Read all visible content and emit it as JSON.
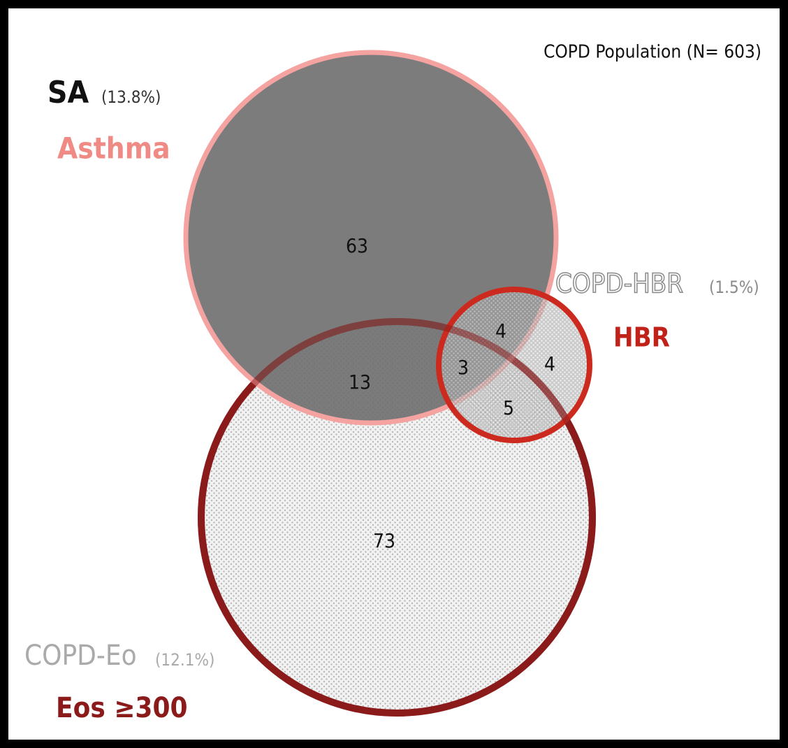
{
  "population": "COPD Population (N= 603)",
  "sets": [
    {
      "name": "SA",
      "percent": "(13.8%)",
      "label": "Asthma"
    },
    {
      "name": "COPD-HBR",
      "percent": "(1.5%)",
      "label": "HBR"
    },
    {
      "name": "COPD-Eo",
      "percent": "(12.1%)",
      "label": "Eos ≥300"
    }
  ],
  "regions": {
    "asthma_only": 63,
    "asthma_eos": 13,
    "asthma_hbr": 4,
    "all_three": 3,
    "hbr_only": 4,
    "eos_hbr": 5,
    "eos_only": 73
  }
}
